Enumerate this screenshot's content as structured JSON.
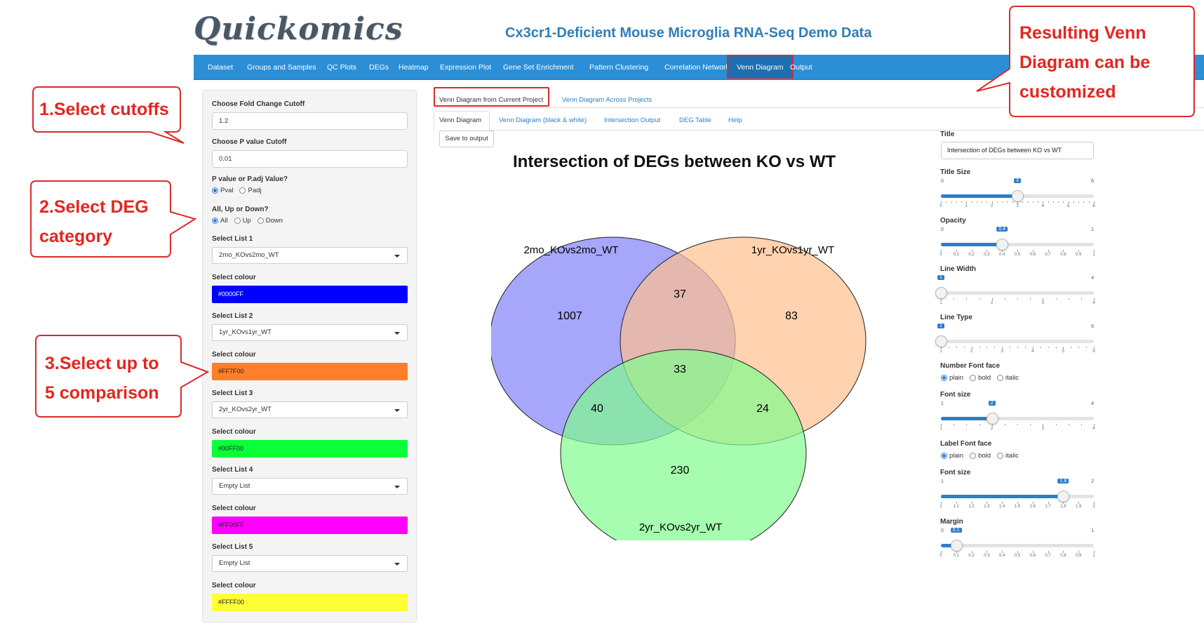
{
  "header": {
    "logo": "Quickomics",
    "title": "Cx3cr1-Deficient Mouse Microglia RNA-Seq Demo Data"
  },
  "nav": {
    "items": [
      "Dataset",
      "Groups and Samples",
      "QC Plots",
      "DEGs",
      "Heatmap",
      "Expression Plot",
      "Gene Set Enrichment",
      "Pattern Clustering",
      "Correlation Network",
      "Venn Diagram",
      "Output"
    ],
    "active": "Venn Diagram"
  },
  "sidebar": {
    "fold_change_label": "Choose Fold Change Cutoff",
    "fold_change_value": "1.2",
    "pvalue_label": "Choose P value Cutoff",
    "pvalue_value": "0.01",
    "ptype_label": "P value or P.adj Value?",
    "ptype_options": [
      "Pval",
      "Padj"
    ],
    "ptype_selected": "Pval",
    "direction_label": "All, Up or Down?",
    "direction_options": [
      "All",
      "Up",
      "Down"
    ],
    "direction_selected": "All",
    "colour_label": "Select colour",
    "lists": [
      {
        "label": "Select List 1",
        "value": "2mo_KOvs2mo_WT",
        "colour": "#0000FF"
      },
      {
        "label": "Select List 2",
        "value": "1yr_KOvs1yr_WT",
        "colour": "#FF7F00"
      },
      {
        "label": "Select List 3",
        "value": "2yr_KOvs2yr_WT",
        "colour": "#00FF00"
      },
      {
        "label": "Select List 4",
        "value": "Empty List",
        "colour": "#FF00FF"
      },
      {
        "label": "Select List 5",
        "value": "Empty List",
        "colour": "#FFFF00"
      }
    ]
  },
  "tabs": {
    "top": [
      "Venn Diagram from Current Project",
      "Venn Diagram Across Projects"
    ],
    "sub": [
      "Venn Diagram",
      "Venn Diagram (black & white)",
      "Intersection Output",
      "DEG Table",
      "Help"
    ],
    "save_button": "Save to output"
  },
  "venn": {
    "title": "Intersection of DEGs between KO vs WT",
    "set_labels": [
      "2mo_KOvs2mo_WT",
      "1yr_KOvs1yr_WT",
      "2yr_KOvs2yr_WT"
    ],
    "set_colors": [
      "#8080f8",
      "#ffc08e",
      "#80fc8e"
    ],
    "counts": {
      "only_a": "1007",
      "only_b": "83",
      "only_c": "230",
      "ab": "37",
      "ac": "40",
      "bc": "24",
      "abc": "33"
    }
  },
  "settings": {
    "title_label": "Title",
    "title_value": "Intersection of DEGs between KO vs WT",
    "sliders": [
      {
        "label": "Title Size",
        "min": "0",
        "max": "6",
        "value": "3",
        "fraction": 0.5,
        "ticks": [
          "0",
          "1",
          "2",
          "3",
          "4",
          "5",
          "6"
        ],
        "minor": 5
      },
      {
        "label": "Opacity",
        "min": "0",
        "max": "1",
        "value": "0.4",
        "fraction": 0.4,
        "ticks": [
          "0",
          "0.1",
          "0.2",
          "0.3",
          "0.4",
          "0.5",
          "0.6",
          "0.7",
          "0.8",
          "0.9",
          "1"
        ],
        "minor": 0
      },
      {
        "label": "Line Width",
        "min": "1",
        "max": "4",
        "value": "1",
        "fraction": 0.0,
        "ticks": [
          "1",
          "2",
          "3",
          "4"
        ],
        "minor": 4
      },
      {
        "label": "Line Type",
        "min": "1",
        "max": "6",
        "value": "1",
        "fraction": 0.0,
        "ticks": [
          "1",
          "2",
          "3",
          "4",
          "5",
          "6"
        ],
        "minor": 4
      },
      {
        "label": "Font size",
        "min": "1",
        "max": "4",
        "value": "2",
        "fraction": 0.3333,
        "ticks": [
          "1",
          "2",
          "3",
          "4"
        ],
        "minor": 4
      },
      {
        "label": "Font size",
        "min": "1",
        "max": "2",
        "value": "1.8",
        "fraction": 0.8,
        "ticks": [
          "1",
          "1.1",
          "1.2",
          "1.3",
          "1.4",
          "1.5",
          "1.6",
          "1.7",
          "1.8",
          "1.9",
          "2"
        ],
        "minor": 0
      },
      {
        "label": "Margin",
        "min": "0",
        "max": "1",
        "value": "0.1",
        "fraction": 0.1,
        "ticks": [
          "0",
          "0.1",
          "0.2",
          "0.3",
          "0.4",
          "0.5",
          "0.6",
          "0.7",
          "0.8",
          "0.9",
          "1"
        ],
        "minor": 0
      }
    ],
    "number_face_label": "Number Font face",
    "label_face_label": "Label Font face",
    "face_options": [
      "plain",
      "bold",
      "italic"
    ],
    "face_selected": "plain"
  },
  "callouts": {
    "c1": [
      "1.Select cutoffs"
    ],
    "c2": [
      "2.Select DEG",
      "category"
    ],
    "c3": [
      "3.Select up to",
      "5 comparison"
    ],
    "c4": [
      "Resulting Venn",
      "Diagram can be",
      "customized"
    ]
  }
}
